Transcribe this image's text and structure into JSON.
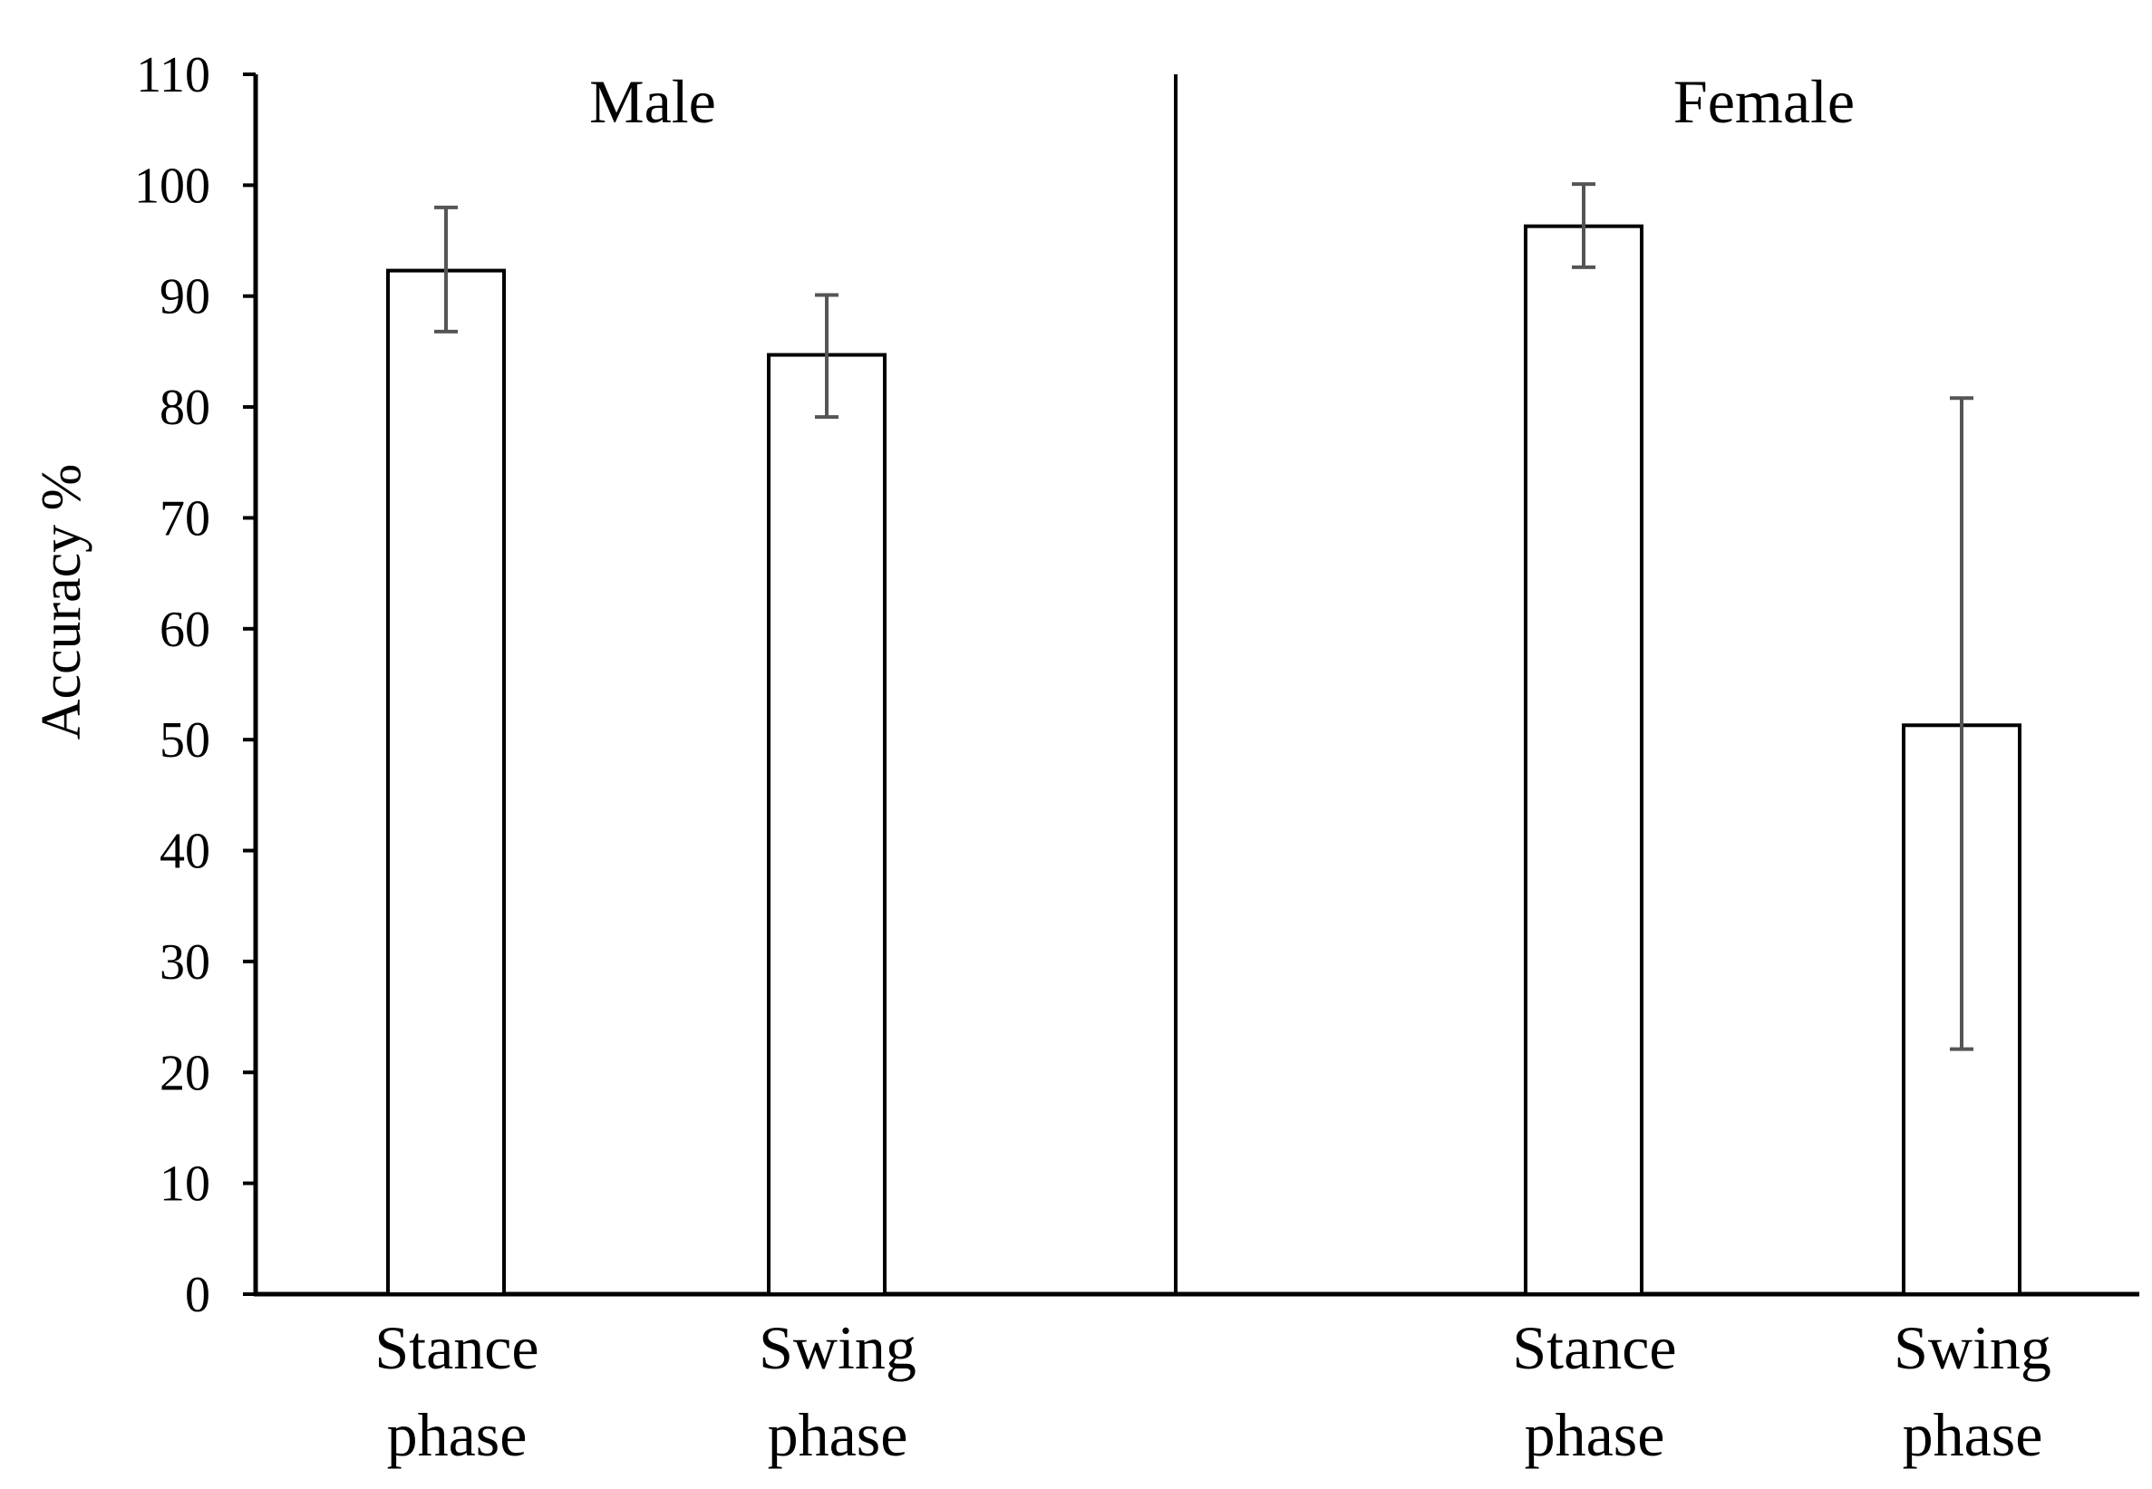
{
  "chart_data": {
    "type": "bar",
    "title": "",
    "ylabel": "Accuracy %",
    "ylim": [
      0,
      110
    ],
    "yticks": [
      0,
      10,
      20,
      30,
      40,
      50,
      60,
      70,
      80,
      90,
      100,
      110
    ],
    "grid": false,
    "groups": [
      {
        "label": "Male",
        "bars": [
          {
            "category": [
              "Stance",
              "phase"
            ],
            "value": 92.3,
            "err_low": 86.8,
            "err_high": 98.0
          },
          {
            "category": [
              "Swing",
              "phase"
            ],
            "value": 84.7,
            "err_low": 79.1,
            "err_high": 90.1
          }
        ]
      },
      {
        "label": "Female",
        "bars": [
          {
            "category": [
              "Stance",
              "phase"
            ],
            "value": 96.3,
            "err_low": 92.6,
            "err_high": 100.1
          },
          {
            "category": [
              "Swing",
              "phase"
            ],
            "value": 51.3,
            "err_low": 22.1,
            "err_high": 80.8
          }
        ]
      }
    ],
    "colors": {
      "bar_fill": "#ffffff",
      "bar_stroke": "#000000",
      "error_bar": "#555555",
      "axis": "#000000"
    }
  }
}
